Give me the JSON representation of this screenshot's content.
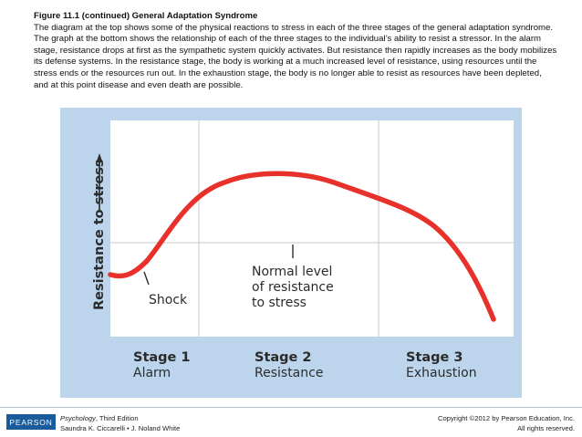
{
  "caption": {
    "title": "Figure 11.1 (continued)   General Adaptation Syndrome",
    "body": "The diagram at the top shows some of the physical reactions to stress in each of the three stages of the general adaptation syndrome. The graph at the bottom shows the relationship of each of the three stages to the individual’s ability to resist a stressor. In the alarm stage, resistance drops at first as the sympathetic system quickly activates. But resistance then rapidly increases as the body mobilizes its defense systems. In the resistance stage, the body is working at a much increased level of resistance, using resources until the stress ends or the resources run out. In the exhaustion stage, the body is no longer able to resist as resources have been depleted, and at this point disease and even death are possible."
  },
  "figure": {
    "y_axis_label": "Resistance to stress",
    "shock_label": "Shock",
    "normal_label_lines": [
      "Normal level",
      "of resistance",
      "to stress"
    ],
    "stages": [
      {
        "number": "Stage 1",
        "name": "Alarm"
      },
      {
        "number": "Stage 2",
        "name": "Resistance"
      },
      {
        "number": "Stage 3",
        "name": "Exhaustion"
      }
    ],
    "colors": {
      "background": "#bcd5ec",
      "plot_area": "#ffffff",
      "curve": "#e8312a",
      "text": "#2b2b2b"
    }
  },
  "footer": {
    "logo": "PEARSON",
    "book_title": "Psychology",
    "book_edition": ", Third Edition",
    "authors": "Saundra K. Ciccarelli • J. Noland White",
    "copyright": "Copyright ©2012 by Pearson Education, Inc.",
    "rights": "All rights reserved."
  }
}
